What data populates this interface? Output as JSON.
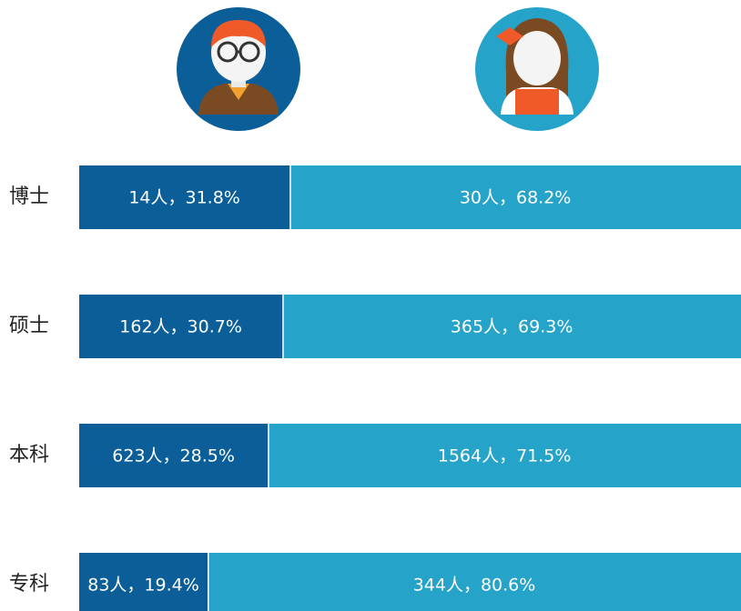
{
  "chart_data": {
    "type": "bar",
    "orientation": "horizontal",
    "stacked": true,
    "categories": [
      "博士",
      "硕士",
      "本科",
      "专科"
    ],
    "xlim": [
      0,
      100
    ],
    "series": [
      {
        "color": "#0b5e97",
        "values": [
          31.8,
          30.7,
          28.5,
          19.4
        ],
        "value_labels": [
          "14人，31.8%",
          "162人，30.7%",
          "623人，28.5%",
          "83人，19.4%"
        ]
      },
      {
        "color": "#26a3c8",
        "values": [
          68.2,
          69.3,
          71.5,
          80.6
        ],
        "value_labels": [
          "30人，68.2%",
          "365人，69.3%",
          "1564人，71.5%",
          "344人，80.6%"
        ]
      }
    ]
  }
}
